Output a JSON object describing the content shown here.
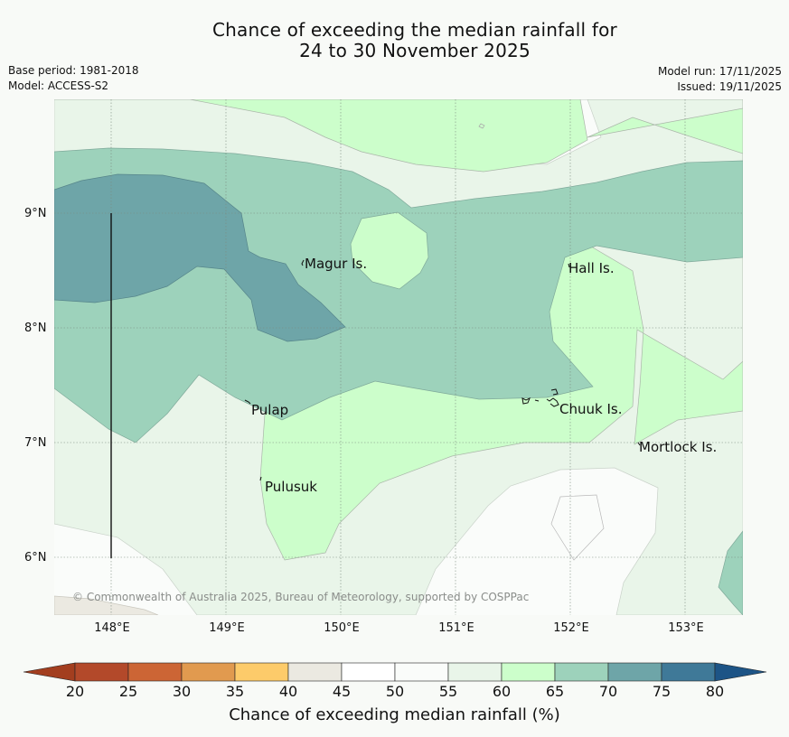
{
  "title": {
    "line1": "Chance of exceeding the median rainfall for",
    "line2": "24 to 30 November 2025"
  },
  "meta": {
    "base_period": "Base period: 1981-2018",
    "model": "Model: ACCESS-S2",
    "model_run": "Model run: 17/11/2025",
    "issued": "Issued: 19/11/2025"
  },
  "map": {
    "lat_labels": [
      "9°N",
      "8°N",
      "7°N",
      "6°N"
    ],
    "lon_labels": [
      "148°E",
      "149°E",
      "150°E",
      "151°E",
      "152°E",
      "153°E"
    ],
    "places": [
      "Magur Is.",
      "Hall Is.",
      "Pulap",
      "Chuuk Is.",
      "Mortlock Is.",
      "Pulusuk"
    ],
    "copyright": "© Commonwealth of Australia 2025, Bureau of Meteorology, supported by COSPPac"
  },
  "legend": {
    "ticks": [
      "20",
      "25",
      "30",
      "35",
      "40",
      "45",
      "50",
      "55",
      "60",
      "65",
      "70",
      "75",
      "80"
    ],
    "colors": [
      "#a33e1f",
      "#b3492a",
      "#cc6535",
      "#e19a4f",
      "#fdcb6a",
      "#ebe9e1",
      "#ffffff",
      "#fafcfa",
      "#e9f5e9",
      "#ccfecb",
      "#9dd2bb",
      "#6ea5a8",
      "#3f7998",
      "#1d5486"
    ],
    "label": "Chance of exceeding median rainfall (%)"
  }
}
